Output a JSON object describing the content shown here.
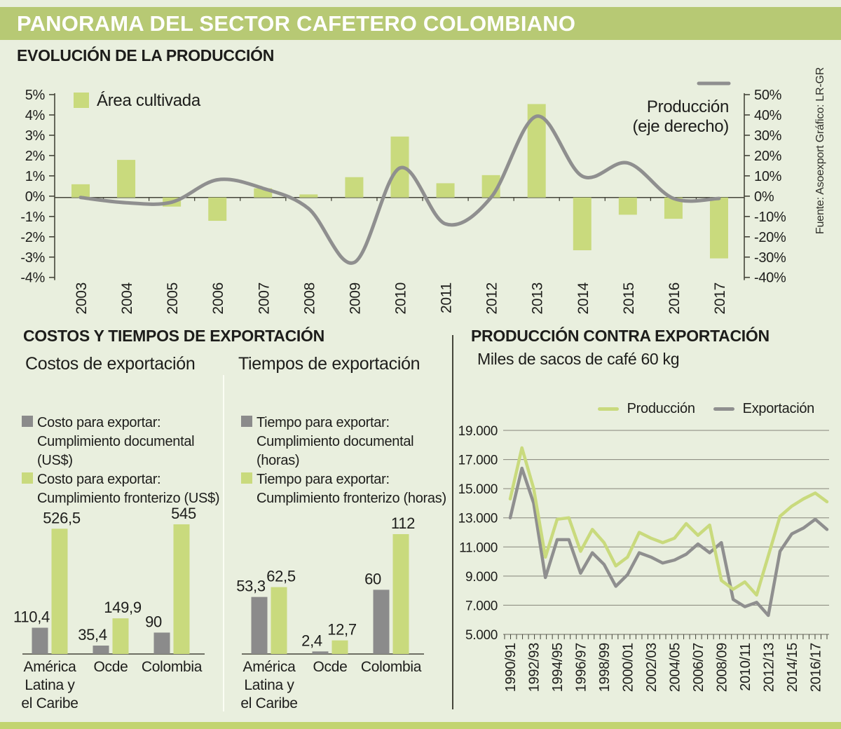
{
  "header": {
    "title": "PANORAMA DEL SECTOR CAFETERO COLOMBIANO"
  },
  "source_note": "Fuente: Asoexport    Gráfico: LR-GR",
  "export_section": {
    "title": "COSTOS Y TIEMPOS DE EXPORTACIÓN",
    "costos_legend": [
      {
        "swatch": "gray",
        "line1": "Costo para exportar:",
        "line2": "Cumplimiento documental (US$)"
      },
      {
        "swatch": "green",
        "line1": "Costo para exportar:",
        "line2": "Cumplimiento fronterizo (US$)"
      }
    ],
    "tiempos_legend": [
      {
        "swatch": "gray",
        "line1": "Tiempo para exportar:",
        "line2": "Cumplimiento documental (horas)"
      },
      {
        "swatch": "green",
        "line1": "Tiempo para exportar:",
        "line2": "Cumplimiento fronterizo (horas)"
      }
    ]
  },
  "colors": {
    "background": "#e9efde",
    "band_green": "#b7c974",
    "footer_green": "#c2d470",
    "bar_green": "#c9da7d",
    "bar_gray": "#8b8b8b",
    "line_gray": "#8f8f8f",
    "axis": "#45453a",
    "grid": "#85857a",
    "text": "#1d1d1b"
  },
  "chart_data": [
    {
      "id": "evolucion-produccion",
      "type": "combo-bar-line",
      "title": "EVOLUCIÓN DE LA PRODUCCIÓN",
      "categories": [
        "2003",
        "2004",
        "2005",
        "2006",
        "2007",
        "2008",
        "2009",
        "2010",
        "2011",
        "2012",
        "2013",
        "2014",
        "2015",
        "2016",
        "2017"
      ],
      "series": [
        {
          "name": "Área cultivada",
          "type": "bar",
          "axis": "left",
          "unit": "percent",
          "values": [
            0.65,
            1.85,
            -0.45,
            -1.15,
            0.45,
            0.15,
            1.0,
            3.0,
            0.7,
            1.1,
            4.6,
            -2.6,
            -0.85,
            -1.05,
            -3.0
          ]
        },
        {
          "name": "Producción (eje derecho)",
          "legend_lines": [
            "Producción",
            "(eje derecho)"
          ],
          "type": "line",
          "axis": "right",
          "unit": "percent",
          "values": [
            0,
            -2.6,
            -2.3,
            8.7,
            4.5,
            -5.5,
            -32,
            14.5,
            -13,
            0,
            40,
            10.5,
            17,
            -0.5,
            -0.5
          ]
        }
      ],
      "left_axis": {
        "min": -4,
        "max": 5,
        "tick_labels": [
          "5%",
          "4%",
          "3%",
          "2%",
          "1%",
          "0%",
          "-1%",
          "-2%",
          "-3%",
          "-4%"
        ]
      },
      "right_axis": {
        "min": -40,
        "max": 50,
        "tick_labels": [
          "50%",
          "40%",
          "30%",
          "20%",
          "10%",
          "0%",
          "-10%",
          "-20%",
          "-30%",
          "-40%"
        ]
      }
    },
    {
      "id": "costos-exportacion",
      "type": "bar",
      "title": "Costos de exportación",
      "categories": [
        [
          "América",
          "Latina y",
          "el Caribe"
        ],
        [
          "Ocde"
        ],
        [
          "Colombia"
        ]
      ],
      "series": [
        {
          "name": "Costo para exportar: Cumplimiento documental (US$)",
          "color": "gray",
          "values": [
            110.4,
            35.4,
            90
          ],
          "value_labels": [
            "110,4",
            "35,4",
            "90"
          ]
        },
        {
          "name": "Costo para exportar: Cumplimiento fronterizo (US$)",
          "color": "green",
          "values": [
            526.5,
            149.9,
            545
          ],
          "value_labels": [
            "526,5",
            "149,9",
            "545"
          ]
        }
      ]
    },
    {
      "id": "tiempos-exportacion",
      "type": "bar",
      "title": "Tiempos de exportación",
      "categories": [
        [
          "América",
          "Latina y",
          "el Caribe"
        ],
        [
          "Ocde"
        ],
        [
          "Colombia"
        ]
      ],
      "series": [
        {
          "name": "Tiempo para exportar: Cumplimiento documental (horas)",
          "color": "gray",
          "values": [
            53.3,
            2.4,
            60
          ],
          "value_labels": [
            "53,3",
            "2,4",
            "60"
          ]
        },
        {
          "name": "Tiempo para exportar: Cumplimiento fronterizo (horas)",
          "color": "green",
          "values": [
            62.5,
            12.7,
            112
          ],
          "value_labels": [
            "62,5",
            "12,7",
            "112"
          ]
        }
      ]
    },
    {
      "id": "produccion-contra-exportacion",
      "type": "line",
      "title": "PRODUCCIÓN CONTRA EXPORTACIÓN",
      "subtitle": "Miles de sacos de café 60 kg",
      "x": [
        "1990/91",
        "1991/92",
        "1992/93",
        "1993/94",
        "1994/95",
        "1995/96",
        "1996/97",
        "1997/98",
        "1998/99",
        "1999/00",
        "2000/01",
        "2001/02",
        "2002/03",
        "2003/04",
        "2004/05",
        "2005/06",
        "2006/07",
        "2007/08",
        "2008/09",
        "2009/10",
        "2010/11",
        "2011/12",
        "2012/13",
        "2013/14",
        "2014/15",
        "2015/16",
        "2016/17",
        "2017/18"
      ],
      "x_label_every": 2,
      "series": [
        {
          "name": "Producción",
          "color": "green",
          "values": [
            14300,
            17800,
            15000,
            10300,
            12900,
            13000,
            10700,
            12200,
            11300,
            9700,
            10300,
            12000,
            11600,
            11300,
            11600,
            12600,
            11800,
            12500,
            8700,
            8100,
            8600,
            7700,
            10400,
            13100,
            13800,
            14300,
            14700,
            14100
          ]
        },
        {
          "name": "Exportación",
          "color": "gray",
          "values": [
            13000,
            16400,
            14000,
            8900,
            11500,
            11500,
            9200,
            10600,
            9800,
            8300,
            9100,
            10600,
            10300,
            9900,
            10100,
            10500,
            11200,
            10600,
            11300,
            7400,
            6900,
            7200,
            6300,
            10700,
            11900,
            12300,
            12900,
            12200
          ]
        }
      ],
      "ylim": [
        5000,
        19000
      ],
      "y_tick_labels": [
        "19.000",
        "17.000",
        "15.000",
        "13.000",
        "11.000",
        "9.000",
        "7.000",
        "5.000"
      ],
      "grid": true,
      "legend_position": "top-right"
    }
  ]
}
